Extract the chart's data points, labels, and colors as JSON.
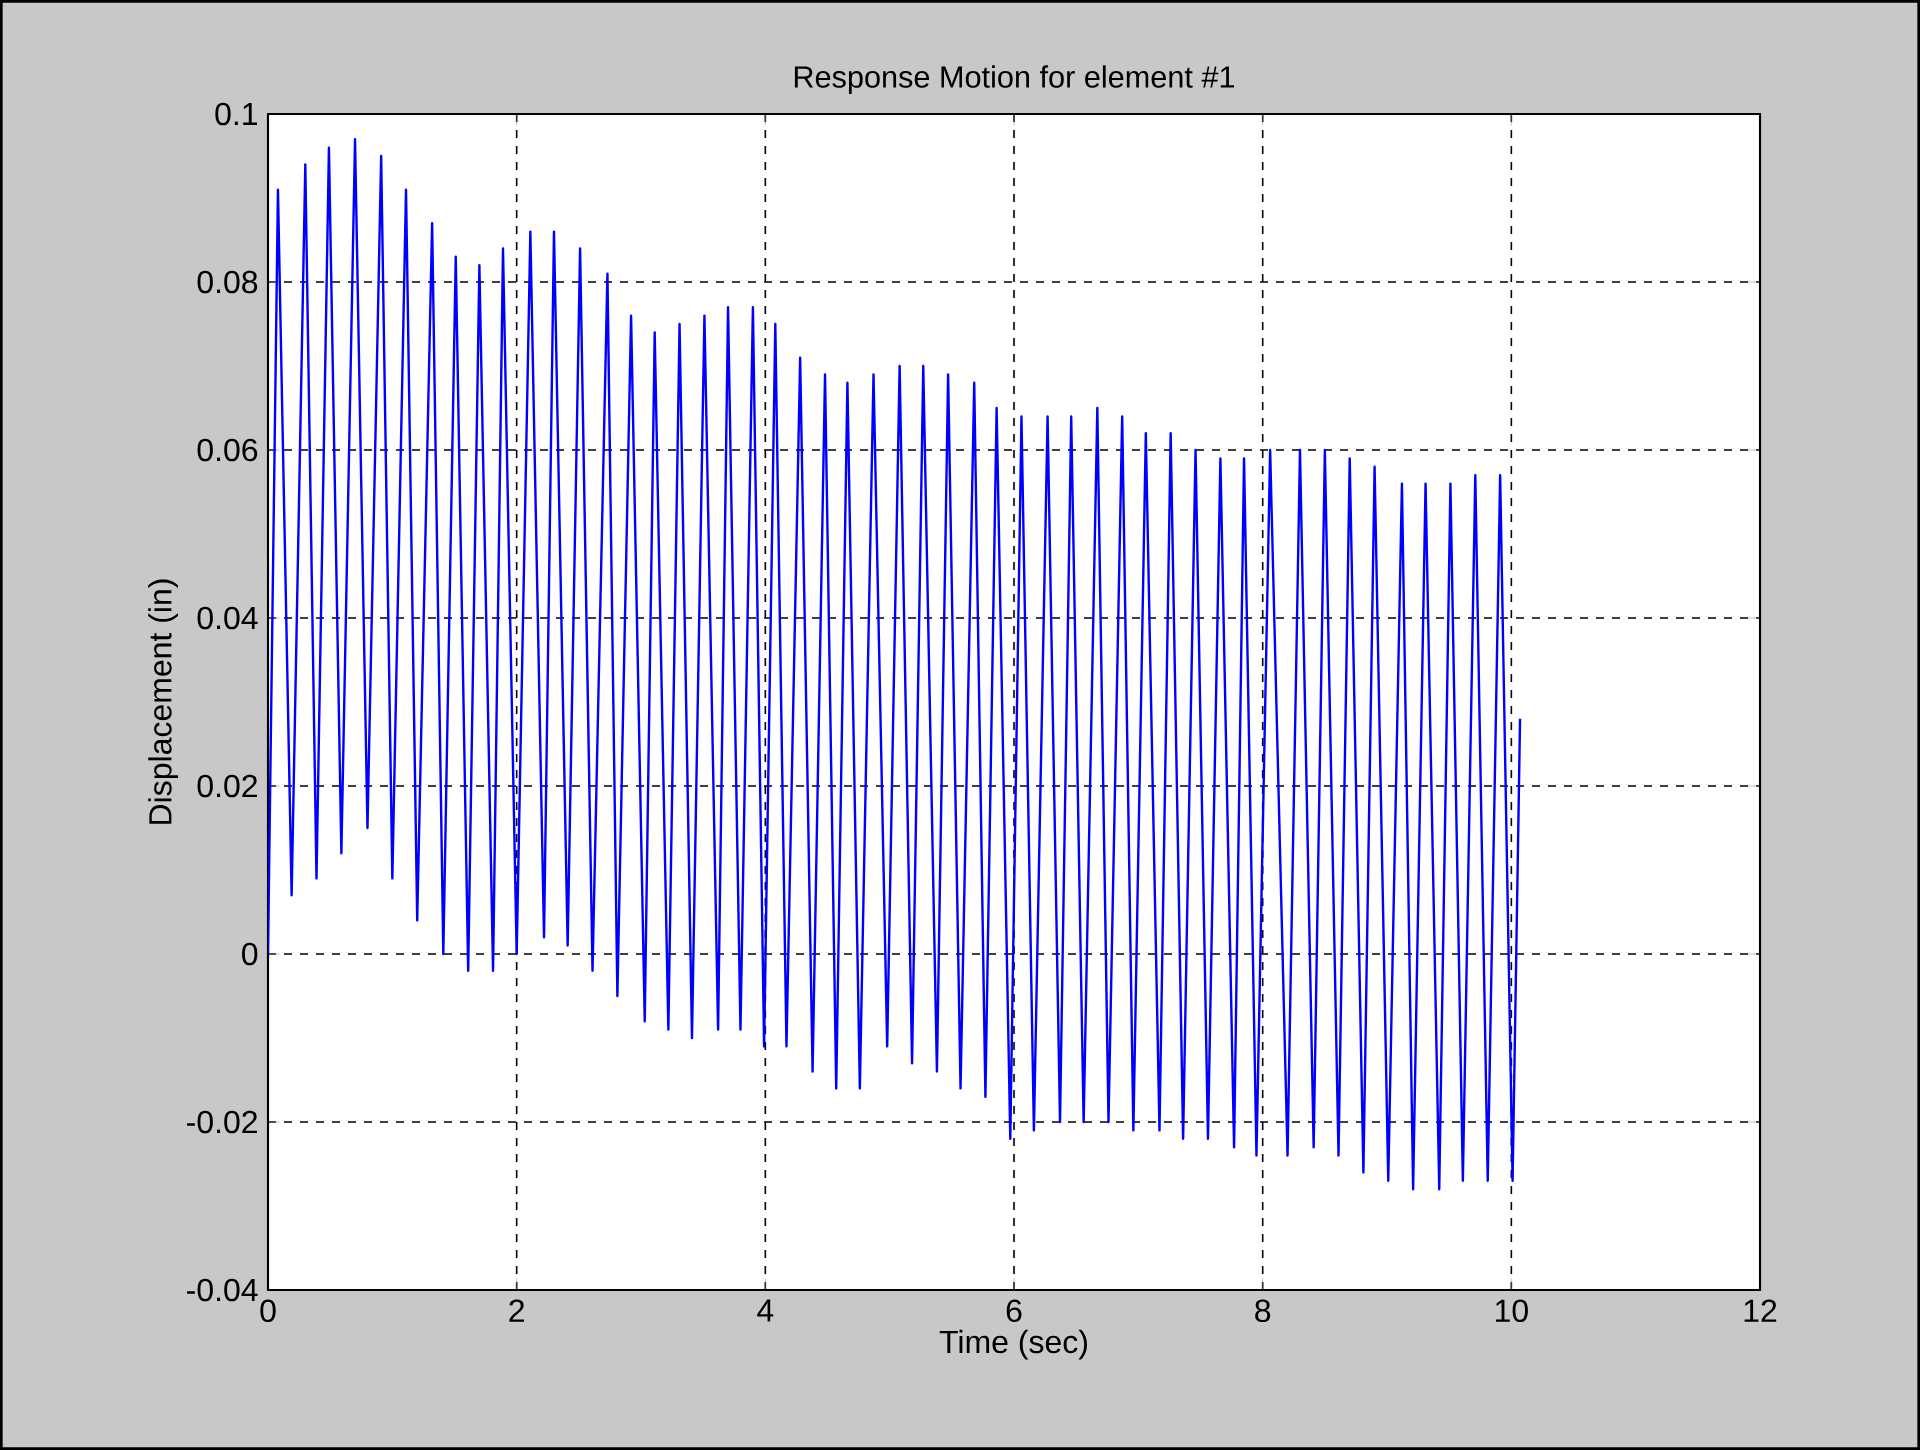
{
  "chart_data": {
    "type": "line",
    "title": "Response Motion for element #1",
    "xlabel": "Time (sec)",
    "ylabel": "Displacement (in)",
    "xlim": [
      0,
      12
    ],
    "xticks": [
      0,
      2,
      4,
      6,
      8,
      10,
      12
    ],
    "ylim": [
      -0.04,
      0.1
    ],
    "yticks": [
      -0.04,
      -0.02,
      0,
      0.02,
      0.04,
      0.06,
      0.08,
      0.1
    ],
    "grid": true,
    "marker": "none",
    "line_style": "solid",
    "series": [
      {
        "color": "#0000ff",
        "x": [
          0,
          0.08,
          0.19,
          0.3,
          0.39,
          0.49,
          0.59,
          0.7,
          0.8,
          0.91,
          1.0,
          1.11,
          1.2,
          1.32,
          1.41,
          1.51,
          1.61,
          1.7,
          1.81,
          1.89,
          2.0,
          2.11,
          2.22,
          2.3,
          2.41,
          2.51,
          2.61,
          2.73,
          2.81,
          2.92,
          3.03,
          3.11,
          3.22,
          3.31,
          3.41,
          3.51,
          3.62,
          3.7,
          3.8,
          3.9,
          3.99,
          4.08,
          4.17,
          4.28,
          4.38,
          4.48,
          4.57,
          4.66,
          4.76,
          4.87,
          4.98,
          5.08,
          5.18,
          5.27,
          5.38,
          5.47,
          5.57,
          5.68,
          5.77,
          5.86,
          5.97,
          6.06,
          6.16,
          6.27,
          6.37,
          6.46,
          6.56,
          6.67,
          6.76,
          6.87,
          6.96,
          7.06,
          7.17,
          7.26,
          7.36,
          7.46,
          7.56,
          7.66,
          7.77,
          7.85,
          7.95,
          8.06,
          8.2,
          8.3,
          8.41,
          8.5,
          8.61,
          8.7,
          8.81,
          8.9,
          9.01,
          9.12,
          9.21,
          9.31,
          9.42,
          9.51,
          9.61,
          9.71,
          9.81,
          9.91,
          10.01,
          10.07
        ],
        "values": [
          0,
          0.091,
          0.007,
          0.094,
          0.009,
          0.096,
          0.012,
          0.097,
          0.015,
          0.095,
          0.009,
          0.091,
          0.004,
          0.087,
          0.0,
          0.083,
          -0.002,
          0.082,
          -0.002,
          0.084,
          0.0,
          0.086,
          0.002,
          0.086,
          0.001,
          0.084,
          -0.002,
          0.081,
          -0.005,
          0.076,
          -0.008,
          0.074,
          -0.009,
          0.075,
          -0.01,
          0.076,
          -0.009,
          0.077,
          -0.009,
          0.077,
          -0.011,
          0.075,
          -0.011,
          0.071,
          -0.014,
          0.069,
          -0.016,
          0.068,
          -0.016,
          0.069,
          -0.011,
          0.07,
          -0.013,
          0.07,
          -0.014,
          0.069,
          -0.016,
          0.068,
          -0.017,
          0.065,
          -0.022,
          0.064,
          -0.021,
          0.064,
          -0.02,
          0.064,
          -0.02,
          0.065,
          -0.02,
          0.064,
          -0.021,
          0.062,
          -0.021,
          0.062,
          -0.022,
          0.06,
          -0.022,
          0.059,
          -0.023,
          0.059,
          -0.024,
          0.06,
          -0.024,
          0.06,
          -0.023,
          0.06,
          -0.024,
          0.059,
          -0.026,
          0.058,
          -0.027,
          0.056,
          -0.028,
          0.056,
          -0.028,
          0.056,
          -0.027,
          0.057,
          -0.027,
          0.057,
          -0.027,
          0.028
        ]
      }
    ]
  }
}
